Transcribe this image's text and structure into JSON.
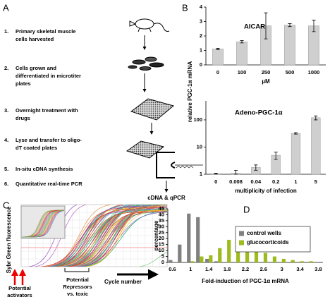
{
  "panels": [
    "A",
    "B",
    "C",
    "D"
  ],
  "protocol": {
    "steps": [
      {
        "number": "1.",
        "lines": [
          "Primary skeletal muscle",
          "cells harvested"
        ]
      },
      {
        "number": "2.",
        "lines": [
          "Cells grown and",
          "differentiated in microtiter",
          "plates"
        ]
      },
      {
        "number": "3.",
        "lines": [
          "Overnight treatment with",
          "drugs"
        ]
      },
      {
        "number": "4.",
        "lines": [
          "Lyse and transfer to oligo-",
          "dT coated plates"
        ]
      },
      {
        "number": "5.",
        "lines": [
          "In-situ cDNA synthesis"
        ]
      },
      {
        "number": "6.",
        "lines": [
          "Quantitative real-time PCR"
        ]
      }
    ],
    "output_label": "cDNA & qPCR"
  },
  "qpcr": {
    "ylabel": "Sybr Green fluorescence",
    "activators": [
      "Potential",
      "activators"
    ],
    "repressors": [
      "Potential",
      "Repressors",
      "vs. toxic"
    ],
    "xlabel": "Cycle number"
  },
  "chart_data": [
    {
      "type": "bar",
      "title": "AICAR",
      "categories": [
        "0",
        "100",
        "250",
        "500",
        "1000"
      ],
      "values": [
        1.1,
        1.6,
        2.7,
        2.75,
        2.7
      ],
      "errors": [
        0.05,
        0.08,
        0.9,
        0.1,
        0.4
      ],
      "color": "#cfcfcf",
      "xlabel": "µM",
      "ylabel": "relative PGC-1α mRNA",
      "ylim": [
        0,
        4
      ],
      "yticks": [
        0,
        1,
        2,
        3,
        4
      ]
    },
    {
      "type": "bar",
      "title": "Adeno-PGC-1α",
      "categories": [
        "0",
        "0.008",
        "0.04",
        "0.2",
        "1",
        "5"
      ],
      "values": [
        1.05,
        1.1,
        1.8,
        5,
        32,
        120
      ],
      "errors": [
        0.03,
        0.3,
        0.4,
        1.5,
        2,
        20
      ],
      "color": "#cfcfcf",
      "xlabel": "multiplicity of infection",
      "log_scale": true,
      "ylim": [
        1,
        500
      ],
      "yticks": [
        1,
        10,
        100
      ]
    },
    {
      "type": "grouped_bar",
      "categories": [
        "0.6",
        null,
        "1",
        null,
        "1.4",
        null,
        "1.8",
        null,
        "2.2",
        null,
        "2.6",
        null,
        "3",
        null,
        "3.4",
        null,
        "3.8"
      ],
      "series": [
        {
          "name": "control wells",
          "color": "#808080",
          "values": [
            2,
            15,
            41,
            38,
            3,
            1,
            0,
            0,
            0,
            0,
            0,
            0,
            0,
            0,
            0,
            0,
            0
          ]
        },
        {
          "name": "glucocorticoids",
          "color": "#9cbb1c",
          "values": [
            0,
            0,
            1,
            5,
            6,
            12,
            19,
            15,
            13,
            10,
            8,
            5,
            3,
            2,
            1,
            1,
            0
          ]
        }
      ],
      "xlabel": "Fold-induction of PGC-1α mRNA",
      "ylabel": "percentage",
      "ylim": [
        0,
        45
      ],
      "yticks": [
        0,
        5,
        10,
        15,
        20,
        25,
        30,
        35,
        40,
        45
      ],
      "legend": "upper right"
    }
  ]
}
